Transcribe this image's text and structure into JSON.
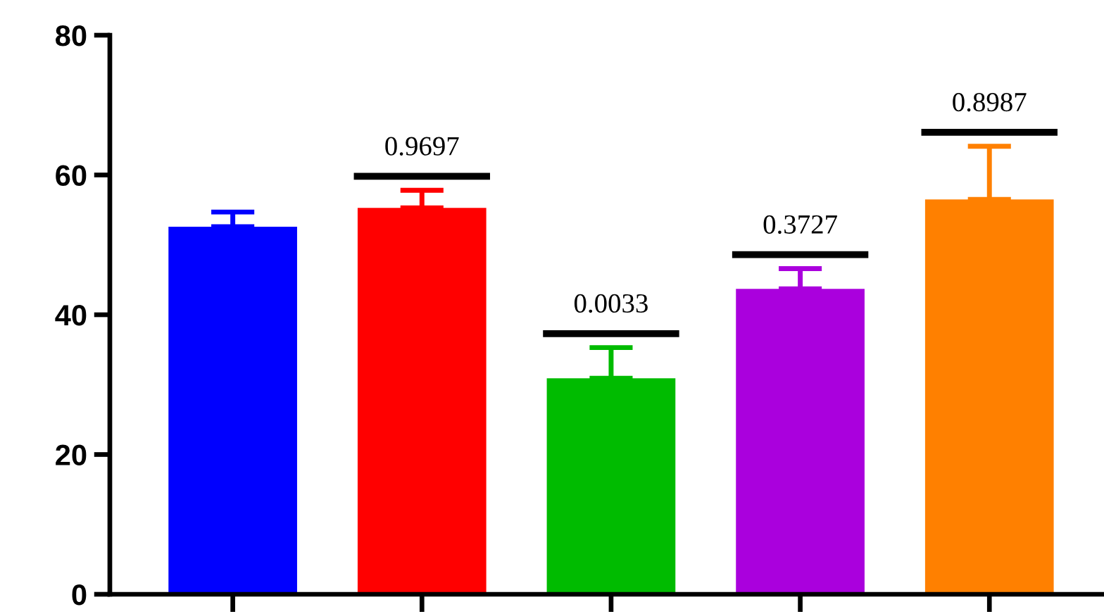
{
  "chart_data": {
    "type": "bar",
    "categories": [
      null,
      null,
      null,
      null,
      null
    ],
    "values": [
      52.6,
      55.3,
      30.9,
      43.7,
      56.5
    ],
    "colors": [
      "#0000ff",
      "#ff0000",
      "#00bb00",
      "#aa00dd",
      "#ff8000"
    ],
    "errors": [
      [
        52.6,
        54.7
      ],
      [
        55.3,
        57.8
      ],
      [
        30.9,
        35.3
      ],
      [
        43.7,
        46.6
      ],
      [
        56.5,
        64.1
      ]
    ],
    "ylim": [
      0,
      80
    ],
    "yticks": [
      0,
      20,
      40,
      60,
      80
    ],
    "grid": false,
    "legend": false,
    "annotations": [
      "0.9697",
      "0.0033",
      "0.3727",
      "0.8987"
    ]
  }
}
